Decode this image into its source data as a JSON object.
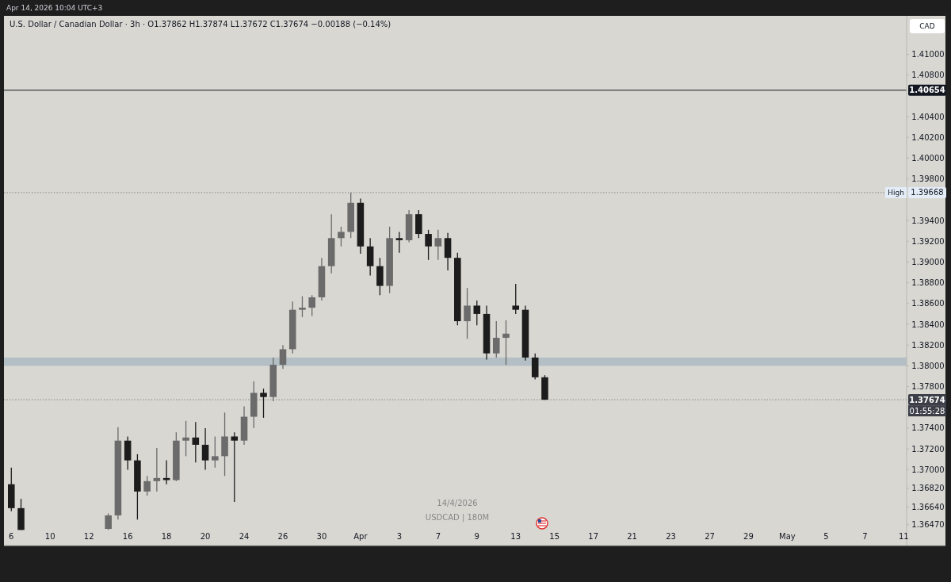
{
  "chart_data": {
    "type": "candlestick",
    "title": "U.S. Dollar / Canadian Dollar · 3h · O1.37862  H1.37874  L1.37672  C1.37674  −0.00188 (−0.14%)",
    "ylabel": "CAD",
    "annotations": [
      "Apr 14, 2026 10:04 UTC+3",
      "14/4/2026",
      "USDCAD | 180M",
      "1.40654",
      "1.39668",
      "1.37674"
    ],
    "categories": [
      "6",
      null,
      null,
      null,
      "10",
      null,
      null,
      null,
      "12",
      null,
      null,
      null,
      "16",
      null,
      null,
      null,
      "18",
      null,
      null,
      null,
      "20",
      null,
      null,
      null,
      "24",
      null,
      null,
      null,
      "26",
      null,
      null,
      null,
      "30",
      null,
      null,
      null,
      "Apr",
      null,
      null,
      null,
      "3",
      null,
      null,
      null,
      "7",
      null,
      null,
      null,
      "9",
      null,
      null,
      null,
      "13",
      null,
      null,
      null,
      "15",
      null,
      null,
      null,
      "17",
      null,
      null,
      null,
      "21",
      null,
      null,
      null,
      "23",
      null,
      null,
      null,
      "27",
      null,
      null,
      null,
      "29",
      null,
      null,
      null,
      "May",
      null,
      null,
      null,
      "5",
      null,
      null,
      null,
      "7",
      null,
      null,
      null,
      "11"
    ],
    "ohlc": [
      [
        1.3686,
        1.3702,
        1.366,
        1.3663
      ],
      [
        1.3663,
        1.3672,
        1.3642,
        1.3642
      ],
      null,
      null,
      null,
      null,
      null,
      null,
      null,
      null,
      [
        1.3643,
        1.3658,
        1.3642,
        1.3656
      ],
      [
        1.3656,
        1.3741,
        1.3652,
        1.3728
      ],
      [
        1.3728,
        1.3732,
        1.37,
        1.3709
      ],
      [
        1.3709,
        1.3715,
        1.3652,
        1.3679
      ],
      [
        1.3679,
        1.3694,
        1.3675,
        1.3689
      ],
      [
        1.3689,
        1.3721,
        1.3679,
        1.3692
      ],
      [
        1.3692,
        1.3709,
        1.3686,
        1.369
      ],
      [
        1.369,
        1.3736,
        1.3689,
        1.3728
      ],
      [
        1.3728,
        1.3747,
        1.3713,
        1.3731
      ],
      [
        1.3731,
        1.3746,
        1.3707,
        1.3724
      ],
      [
        1.3724,
        1.374,
        1.37,
        1.3709
      ],
      [
        1.3709,
        1.3732,
        1.3702,
        1.3713
      ],
      [
        1.3713,
        1.3755,
        1.3694,
        1.3732
      ],
      [
        1.3732,
        1.3736,
        1.3669,
        1.3728
      ],
      [
        1.3728,
        1.3761,
        1.3724,
        1.3751
      ],
      [
        1.3751,
        1.3785,
        1.374,
        1.3774
      ],
      [
        1.3774,
        1.3778,
        1.375,
        1.377
      ],
      [
        1.377,
        1.3808,
        1.3766,
        1.3801
      ],
      [
        1.3801,
        1.382,
        1.3797,
        1.3816
      ],
      [
        1.3816,
        1.3862,
        1.3812,
        1.3854
      ],
      [
        1.3854,
        1.3867,
        1.3847,
        1.3856
      ],
      [
        1.3856,
        1.3868,
        1.3848,
        1.3866
      ],
      [
        1.3866,
        1.3904,
        1.3863,
        1.3896
      ],
      [
        1.3896,
        1.3946,
        1.3889,
        1.3923
      ],
      [
        1.3923,
        1.3934,
        1.3915,
        1.3929
      ],
      [
        1.3929,
        1.39668,
        1.3923,
        1.3957
      ],
      [
        1.3957,
        1.3961,
        1.3908,
        1.3915
      ],
      [
        1.3915,
        1.3923,
        1.3887,
        1.3896
      ],
      [
        1.3896,
        1.3904,
        1.3868,
        1.3877
      ],
      [
        1.3877,
        1.3934,
        1.387,
        1.3923
      ],
      [
        1.3923,
        1.3929,
        1.3909,
        1.3921
      ],
      [
        1.3921,
        1.395,
        1.3919,
        1.3946
      ],
      [
        1.3946,
        1.395,
        1.3923,
        1.3927
      ],
      [
        1.3927,
        1.3931,
        1.3902,
        1.3915
      ],
      [
        1.3915,
        1.3931,
        1.3902,
        1.3923
      ],
      [
        1.3923,
        1.3928,
        1.3892,
        1.3904
      ],
      [
        1.3904,
        1.3909,
        1.3839,
        1.3843
      ],
      [
        1.3843,
        1.3875,
        1.3826,
        1.3858
      ],
      [
        1.3858,
        1.3863,
        1.3839,
        1.385
      ],
      [
        1.385,
        1.3858,
        1.3806,
        1.3812
      ],
      [
        1.3812,
        1.3843,
        1.3808,
        1.3827
      ],
      [
        1.3827,
        1.3844,
        1.3801,
        1.3831
      ],
      [
        1.3858,
        1.3879,
        1.385,
        1.3854
      ],
      [
        1.3854,
        1.3858,
        1.3805,
        1.3808
      ],
      [
        1.3808,
        1.3812,
        1.3787,
        1.3789
      ],
      [
        1.3789,
        1.3791,
        1.37672,
        1.37674
      ],
      null,
      null,
      null,
      null,
      null,
      null,
      null,
      null,
      null,
      null,
      null,
      null,
      null,
      null,
      null,
      null,
      null,
      null,
      null,
      null,
      null,
      null,
      null,
      null,
      null,
      null,
      null,
      null,
      null,
      null,
      null,
      null,
      null,
      null,
      null,
      null,
      null
    ],
    "colors": [
      "#1c1c1c",
      "#1c1c1c",
      null,
      null,
      null,
      null,
      null,
      null,
      null,
      null,
      "#6b6b6b",
      "#6b6b6b",
      "#1c1c1c",
      "#1c1c1c",
      "#6b6b6b",
      "#6b6b6b",
      "#1c1c1c",
      "#6b6b6b",
      "#6b6b6b",
      "#1c1c1c",
      "#1c1c1c",
      "#6b6b6b",
      "#6b6b6b",
      "#1c1c1c",
      "#6b6b6b",
      "#6b6b6b",
      "#1c1c1c",
      "#6b6b6b",
      "#6b6b6b",
      "#6b6b6b",
      "#6b6b6b",
      "#6b6b6b",
      "#6b6b6b",
      "#6b6b6b",
      "#6b6b6b",
      "#6b6b6b",
      "#1c1c1c",
      "#1c1c1c",
      "#1c1c1c",
      "#6b6b6b",
      "#1c1c1c",
      "#6b6b6b",
      "#1c1c1c",
      "#1c1c1c",
      "#6b6b6b",
      "#1c1c1c",
      "#1c1c1c",
      "#6b6b6b",
      "#1c1c1c",
      "#1c1c1c",
      "#6b6b6b",
      "#6b6b6b",
      "#1c1c1c",
      "#1c1c1c",
      "#1c1c1c",
      "#1c1c1c",
      null,
      null,
      null,
      null,
      null,
      null,
      null,
      null,
      null,
      null,
      null,
      null,
      null,
      null,
      null,
      null,
      null,
      null,
      null,
      null,
      null,
      null,
      null,
      null,
      null,
      null,
      null,
      null,
      null,
      null,
      null,
      null,
      null,
      null,
      null,
      null,
      null
    ],
    "ylim": [
      1.3627,
      1.4137
    ],
    "yticks": [
      {
        "value": 1.3647,
        "label": "1.36470"
      },
      {
        "value": 1.3664,
        "label": "1.36640"
      },
      {
        "value": 1.3682,
        "label": "1.36820"
      },
      {
        "value": 1.37,
        "label": "1.37000"
      },
      {
        "value": 1.372,
        "label": "1.37200"
      },
      {
        "value": 1.374,
        "label": "1.37400"
      },
      {
        "value": 1.378,
        "label": "1.37800"
      },
      {
        "value": 1.38,
        "label": "1.38000"
      },
      {
        "value": 1.382,
        "label": "1.38200"
      },
      {
        "value": 1.384,
        "label": "1.38400"
      },
      {
        "value": 1.386,
        "label": "1.38600"
      },
      {
        "value": 1.388,
        "label": "1.38800"
      },
      {
        "value": 1.39,
        "label": "1.39000"
      },
      {
        "value": 1.392,
        "label": "1.39200"
      },
      {
        "value": 1.394,
        "label": "1.39400"
      },
      {
        "value": 1.398,
        "label": "1.39800"
      },
      {
        "value": 1.4,
        "label": "1.40000"
      },
      {
        "value": 1.402,
        "label": "1.40200"
      },
      {
        "value": 1.404,
        "label": "1.40400"
      },
      {
        "value": 1.408,
        "label": "1.40800"
      },
      {
        "value": 1.41,
        "label": "1.41000"
      }
    ],
    "ref_lines": [
      {
        "axis": "y",
        "value": 1.40654,
        "label": null,
        "color": "#131722",
        "line_style": "solid"
      },
      {
        "axis": "y",
        "value": 1.39668,
        "label": "High",
        "color": "#888888",
        "line_style": "dotted"
      },
      {
        "axis": "y",
        "value": 1.37674,
        "label": "01:55:28",
        "color": "#888888",
        "line_style": "dotted"
      }
    ],
    "bands": [
      {
        "axis": "y",
        "from": 1.38,
        "to": 1.3808,
        "color": "#b3bfc4"
      }
    ],
    "grid": false
  }
}
